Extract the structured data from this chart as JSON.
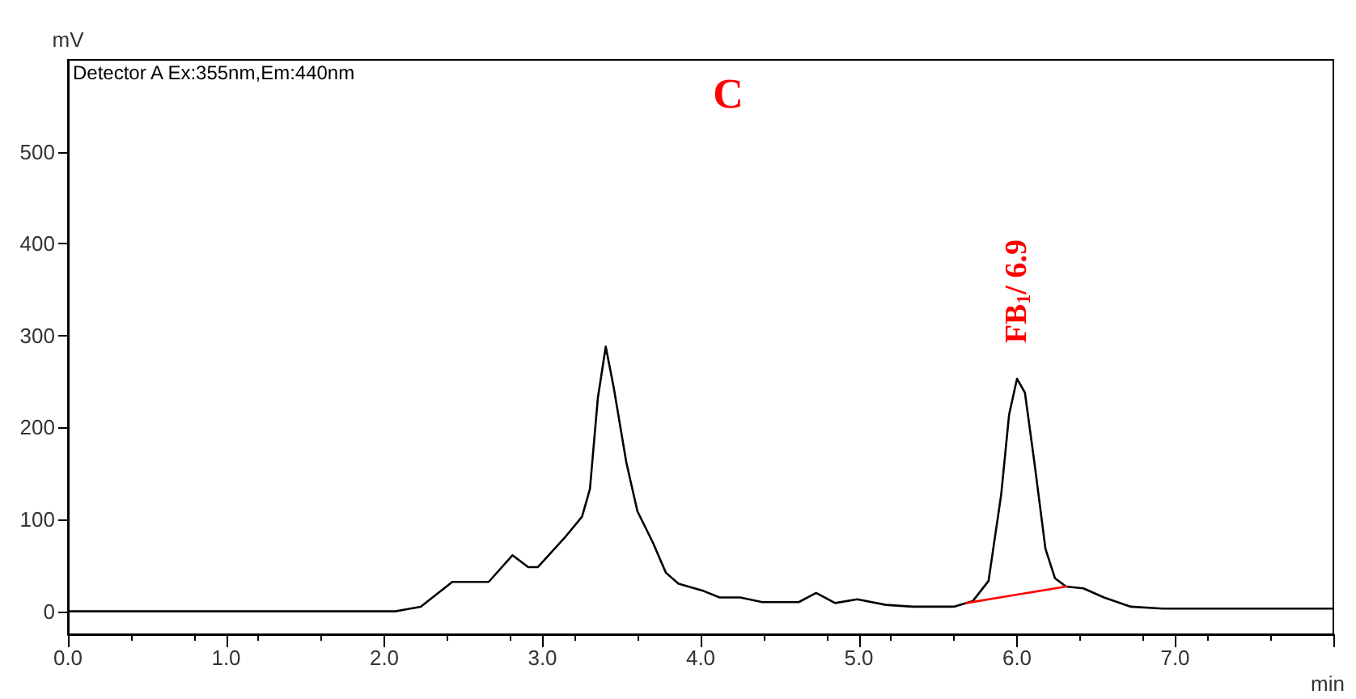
{
  "chart_data": {
    "type": "line",
    "title": "C",
    "xlabel": "min",
    "ylabel": "mV",
    "annotations": [
      "Detector A Ex:355nm,Em:440nm",
      {
        "text": "FB$_{1}$/ 6.9",
        "x": 6.0,
        "y": 253
      }
    ],
    "series": [
      {
        "color": "#000000",
        "x": [
          0,
          2.07,
          2.23,
          2.43,
          2.66,
          2.81,
          2.91,
          2.97,
          3.14,
          3.25,
          3.3,
          3.35,
          3.4,
          3.45,
          3.53,
          3.6,
          3.7,
          3.78,
          3.86,
          4.02,
          4.12,
          4.25,
          4.39,
          4.62,
          4.73,
          4.85,
          4.99,
          5.17,
          5.34,
          5.6,
          5.72,
          5.82,
          5.9,
          5.95,
          6.0,
          6.05,
          6.11,
          6.18,
          6.24,
          6.31,
          6.42,
          6.55,
          6.72,
          6.92,
          8.0
        ],
        "values": [
          0,
          0,
          5,
          32,
          32,
          61,
          48,
          48,
          80,
          103,
          133,
          232,
          288,
          244,
          162,
          109,
          74,
          42,
          30,
          22,
          15,
          15,
          10,
          10,
          20,
          9,
          13,
          7,
          5,
          5,
          11,
          33,
          127,
          214,
          253,
          238,
          162,
          68,
          36,
          27,
          25,
          15,
          5,
          3,
          3
        ]
      },
      {
        "color": "#ff0000",
        "x": [
          5.68,
          6.31
        ],
        "values": [
          9,
          27
        ]
      }
    ],
    "xlim": [
      0,
      8
    ],
    "xticks": [
      {
        "value": 0,
        "label": "0.0"
      },
      {
        "value": 1,
        "label": "1.0"
      },
      {
        "value": 2,
        "label": "2.0"
      },
      {
        "value": 3,
        "label": "3.0"
      },
      {
        "value": 4,
        "label": "4.0"
      },
      {
        "value": 5,
        "label": "5.0"
      },
      {
        "value": 6,
        "label": "6.0"
      },
      {
        "value": 7,
        "label": "7.0"
      },
      {
        "value": 8,
        "label": null
      }
    ],
    "ylim": [
      -25,
      600
    ],
    "yticks": [
      0,
      100,
      200,
      300,
      400,
      500
    ],
    "grid": false,
    "marker": "none",
    "line_style": "solid"
  }
}
